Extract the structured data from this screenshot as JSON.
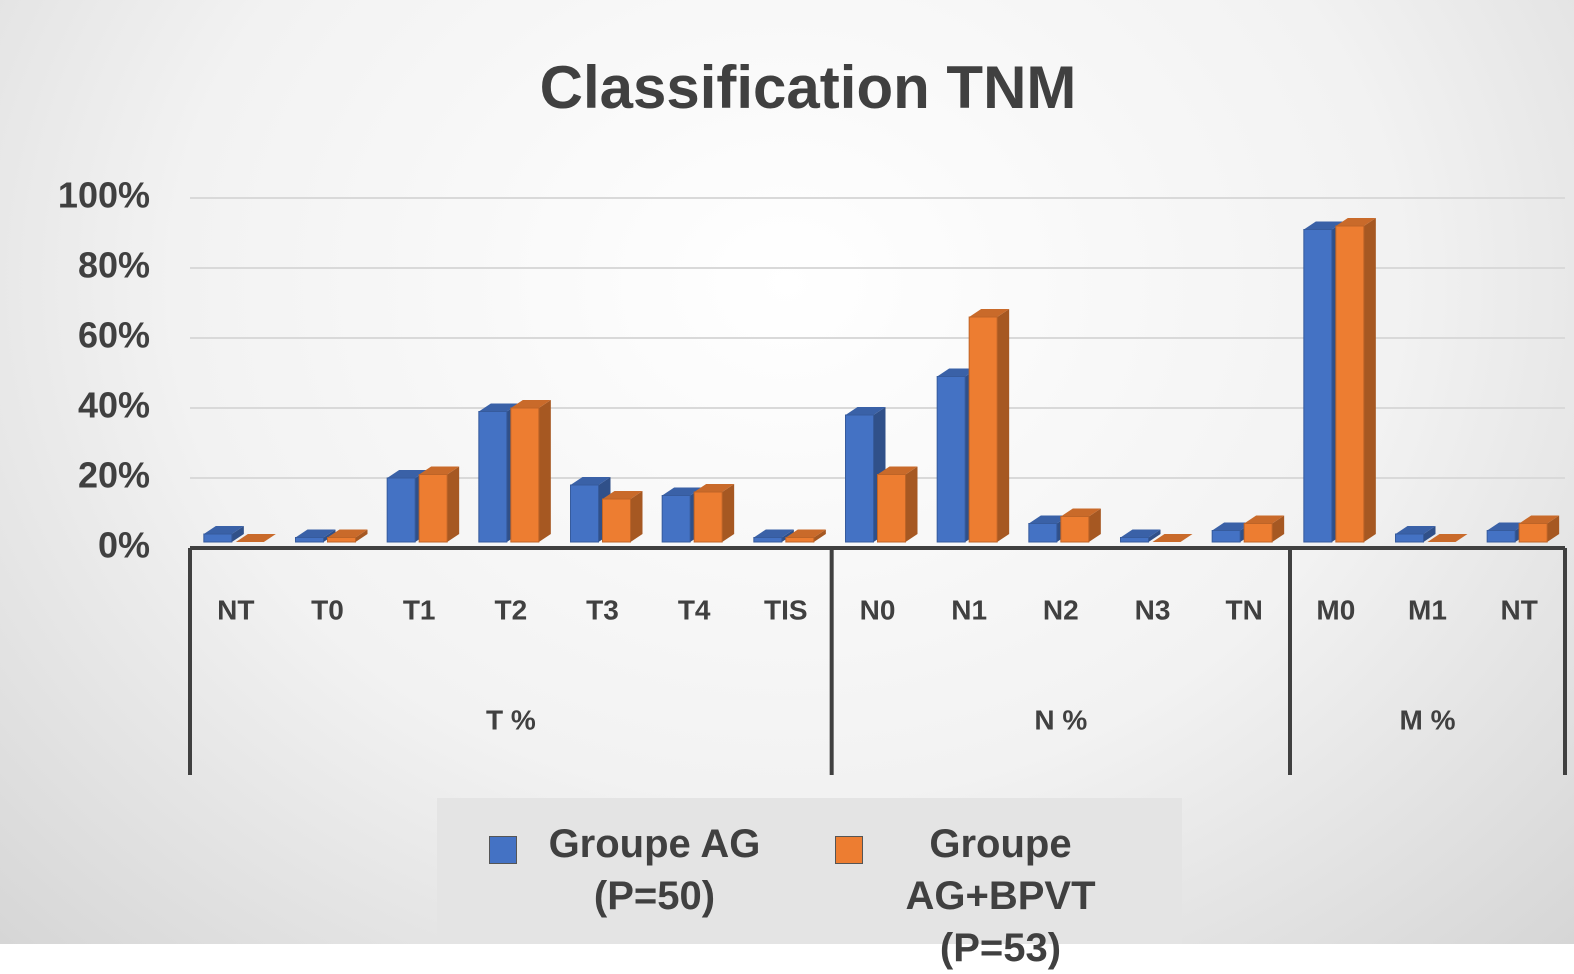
{
  "chart_data": {
    "type": "bar3d",
    "title": "Classification TNM",
    "category_groups": [
      {
        "name": "T %",
        "categories": [
          "NT",
          "T0",
          "T1",
          "T2",
          "T3",
          "T4",
          "TIS"
        ]
      },
      {
        "name": "N %",
        "categories": [
          "N0",
          "N1",
          "N2",
          "N3",
          "TN"
        ]
      },
      {
        "name": "M %",
        "categories": [
          "M0",
          "M1",
          "NT"
        ]
      }
    ],
    "series": [
      {
        "name": "Groupe AG (P=50)",
        "color": "#4472c4",
        "values": [
          4,
          3,
          20,
          39,
          18,
          15,
          3,
          38,
          49,
          7,
          3,
          5,
          91,
          4,
          5
        ]
      },
      {
        "name": "Groupe AG+BPVT (P=53)",
        "color": "#ed7d31",
        "values": [
          0,
          3,
          21,
          40,
          14,
          16,
          3,
          21,
          66,
          9,
          1,
          7,
          92,
          1,
          7
        ]
      }
    ],
    "ylim": [
      0,
      100
    ],
    "yticks": [
      {
        "value": 0,
        "label": "0%"
      },
      {
        "value": 20,
        "label": "20%"
      },
      {
        "value": 40,
        "label": "40%"
      },
      {
        "value": 60,
        "label": "60%"
      },
      {
        "value": 80,
        "label": "80%"
      },
      {
        "value": 100,
        "label": "100%"
      }
    ],
    "grid": true
  }
}
